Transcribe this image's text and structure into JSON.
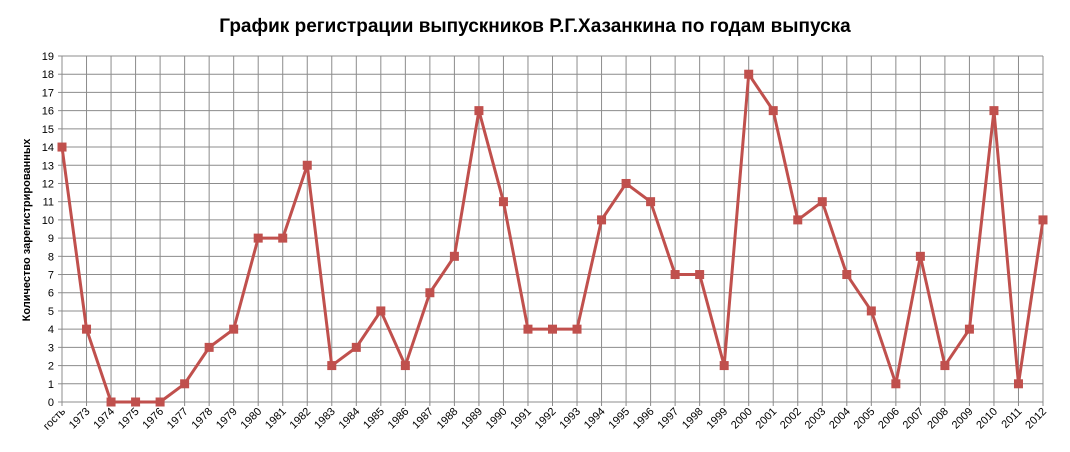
{
  "chart_data": {
    "type": "line",
    "title": "График регистрации выпускников Р.Г.Хазанкина по годам выпуска",
    "xlabel": "",
    "ylabel": "Количество зарегистрированных",
    "categories": [
      "гость",
      "1973",
      "1974",
      "1975",
      "1976",
      "1977",
      "1978",
      "1979",
      "1980",
      "1981",
      "1982",
      "1983",
      "1984",
      "1985",
      "1986",
      "1987",
      "1988",
      "1989",
      "1990",
      "1991",
      "1992",
      "1993",
      "1994",
      "1995",
      "1996",
      "1997",
      "1998",
      "1999",
      "2000",
      "2001",
      "2002",
      "2003",
      "2004",
      "2005",
      "2006",
      "2007",
      "2008",
      "2009",
      "2010",
      "2011",
      "2012"
    ],
    "series": [
      {
        "values": [
          14,
          4,
          0,
          0,
          0,
          1,
          3,
          4,
          9,
          9,
          13,
          2,
          3,
          5,
          2,
          6,
          8,
          16,
          11,
          4,
          4,
          4,
          10,
          12,
          11,
          7,
          7,
          2,
          18,
          16,
          10,
          11,
          7,
          5,
          1,
          8,
          2,
          4,
          16,
          1,
          10
        ]
      }
    ],
    "ylim": [
      0,
      19
    ],
    "yticks": [
      0,
      1,
      2,
      3,
      4,
      5,
      6,
      7,
      8,
      9,
      10,
      11,
      12,
      13,
      14,
      15,
      16,
      17,
      18,
      19
    ],
    "grid": true,
    "legend": "none",
    "colors": {
      "line": "#C0504D",
      "marker": "#C0504D",
      "grid": "#8C8C8C",
      "axis": "#8C8C8C"
    }
  }
}
